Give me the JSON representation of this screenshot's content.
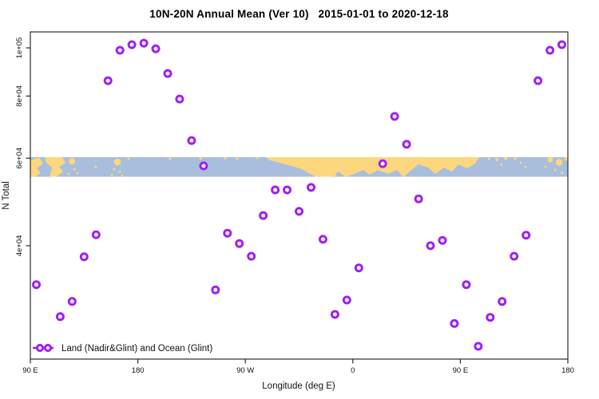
{
  "header": {
    "title": "10N-20N Annual Mean (Ver 10)   2015-01-01 to 2020-12-18"
  },
  "colors": {
    "point_purple": "#A020F0",
    "ocean_blue": "#A8BEDC",
    "land_yellow": "#FCD77E",
    "axis_ink": "#2b2b2b",
    "background": "#ffffff"
  },
  "legend": {
    "label": "Land (Nadir&Glint) and Ocean (Glint)"
  },
  "chart_data": {
    "type": "scatter",
    "title": "10N-20N Annual Mean (Ver 10)   2015-01-01 to 2020-12-18",
    "xlabel": "Longitude (deg E)",
    "ylabel": "N Total",
    "grid": false,
    "legend_position": "bottom-left",
    "x_axis": {
      "note": "longitude unwrapped eastward starting at 90E; 450 deg span",
      "min": 90,
      "max": 540,
      "ticks": [
        {
          "value": 90,
          "label": "90 E"
        },
        {
          "value": 180,
          "label": "180"
        },
        {
          "value": 270,
          "label": "90 W"
        },
        {
          "value": 360,
          "label": "0"
        },
        {
          "value": 450,
          "label": "90 E"
        },
        {
          "value": 540,
          "label": "180"
        }
      ]
    },
    "y_axis": {
      "scale": "log",
      "min": 23660,
      "max": 107670,
      "ticks": [
        {
          "value": 100000,
          "label": "1e+05"
        },
        {
          "value": 80000,
          "label": "8e+04"
        },
        {
          "value": 60000,
          "label": "6e+04"
        },
        {
          "value": 40000,
          "label": "4e+04"
        }
      ]
    },
    "map_band": {
      "description": "world coastline strip for 10N-20N drawn across plot",
      "value_top": 60300,
      "value_bottom": 55060
    },
    "series": [
      {
        "name": "Land (Nadir&Glint) and Ocean (Glint)",
        "symbol": "open-circle",
        "points": [
          [
            95,
            33400
          ],
          [
            115,
            28800
          ],
          [
            125,
            30900
          ],
          [
            135,
            38000
          ],
          [
            145,
            42100
          ],
          [
            155,
            85900
          ],
          [
            165,
            98900
          ],
          [
            175,
            101500
          ],
          [
            185,
            102200
          ],
          [
            195,
            99600
          ],
          [
            205,
            88800
          ],
          [
            215,
            78900
          ],
          [
            225,
            65100
          ],
          [
            235,
            57900
          ],
          [
            245,
            32600
          ],
          [
            255,
            42400
          ],
          [
            265,
            40400
          ],
          [
            275,
            38100
          ],
          [
            285,
            46000
          ],
          [
            295,
            51800
          ],
          [
            305,
            51800
          ],
          [
            315,
            46900
          ],
          [
            325,
            52400
          ],
          [
            335,
            41200
          ],
          [
            345,
            29100
          ],
          [
            355,
            31100
          ],
          [
            365,
            36100
          ],
          [
            385,
            58500
          ],
          [
            395,
            72800
          ],
          [
            405,
            64000
          ],
          [
            415,
            49700
          ],
          [
            425,
            40000
          ],
          [
            435,
            41000
          ],
          [
            445,
            27900
          ],
          [
            455,
            33400
          ],
          [
            465,
            25100
          ],
          [
            475,
            28700
          ],
          [
            485,
            30900
          ],
          [
            495,
            38100
          ],
          [
            505,
            42000
          ],
          [
            515,
            85900
          ],
          [
            525,
            98900
          ],
          [
            535,
            101500
          ]
        ]
      }
    ]
  }
}
